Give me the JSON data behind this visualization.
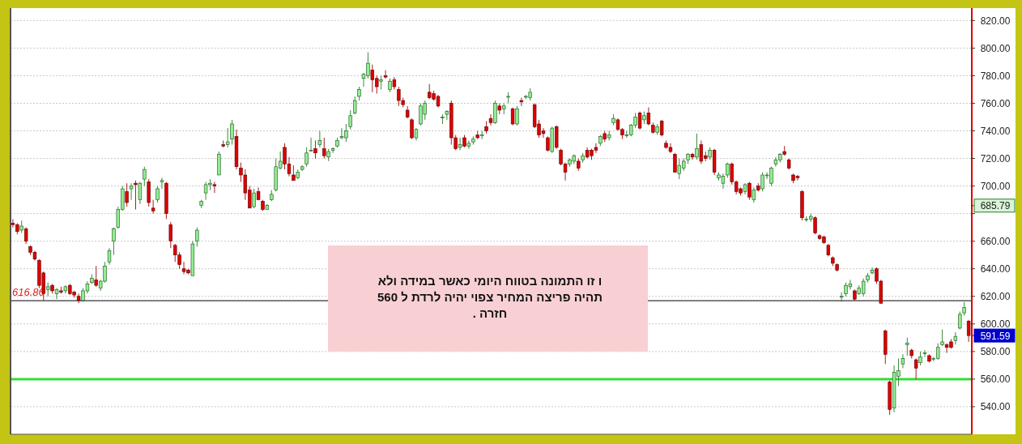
{
  "chart_data": {
    "type": "candlestick",
    "categories": [
      null,
      null,
      null,
      null,
      null,
      null,
      null,
      null,
      null,
      null,
      null,
      null,
      null,
      null,
      null,
      null,
      null,
      null,
      null,
      null,
      null,
      null,
      null,
      null,
      null,
      null,
      null,
      null,
      null,
      null,
      null,
      null,
      null,
      null,
      null,
      null,
      null,
      null,
      null,
      null,
      null,
      null,
      null,
      null,
      null,
      null,
      null,
      null,
      null,
      null,
      null,
      null,
      null,
      null,
      null,
      null,
      null,
      null,
      null,
      null,
      null,
      null,
      null,
      null,
      null,
      null,
      null,
      null,
      null,
      null,
      null,
      null,
      null,
      null,
      null,
      null,
      null,
      null,
      null,
      null,
      null,
      null,
      null,
      null,
      null,
      null,
      null,
      null,
      null,
      null,
      null,
      null,
      null,
      null,
      null,
      null,
      null,
      null,
      null,
      null,
      null,
      null,
      null,
      null,
      null,
      null,
      null,
      null,
      null,
      null,
      null,
      null,
      null,
      null,
      null,
      null,
      null,
      null,
      null,
      null,
      null,
      null,
      null,
      null,
      null,
      null,
      null,
      null,
      null,
      null,
      null,
      null,
      null,
      null,
      null,
      null,
      null,
      null,
      null,
      null,
      null,
      null,
      null,
      null,
      null,
      null,
      null,
      null,
      null,
      null,
      null,
      null,
      null,
      null,
      null,
      null,
      null,
      null,
      null,
      null,
      null,
      null,
      null,
      null,
      null,
      null,
      null,
      null,
      null,
      null,
      null,
      null,
      null,
      null,
      null,
      null,
      null,
      null,
      null,
      null,
      null,
      null,
      null,
      null,
      null,
      null,
      null,
      null,
      null,
      null,
      null,
      null,
      null,
      null,
      null,
      null,
      null,
      null,
      null,
      null,
      null,
      null,
      null,
      null,
      null,
      null,
      null,
      null,
      null,
      null,
      null,
      null,
      null,
      null,
      null,
      null,
      null,
      null,
      null
    ],
    "ohlc": [
      [
        673,
        676,
        670,
        672
      ],
      [
        672,
        673,
        665,
        667
      ],
      [
        668,
        675,
        666,
        671
      ],
      [
        669,
        670,
        658,
        660
      ],
      [
        656,
        657,
        650,
        652
      ],
      [
        652,
        653,
        646,
        647
      ],
      [
        646,
        647,
        626,
        628
      ],
      [
        637,
        638,
        617,
        622
      ],
      [
        625,
        630,
        620,
        627
      ],
      [
        628,
        629,
        622,
        624
      ],
      [
        622,
        626,
        618,
        625
      ],
      [
        624,
        627,
        622,
        623
      ],
      [
        624,
        628,
        622,
        627
      ],
      [
        628,
        629,
        621,
        622
      ],
      [
        623,
        624,
        619,
        621
      ],
      [
        620,
        622,
        615,
        617
      ],
      [
        617,
        626,
        616,
        624
      ],
      [
        624,
        631,
        622,
        629
      ],
      [
        630,
        636,
        629,
        633
      ],
      [
        632,
        642,
        627,
        628
      ],
      [
        626,
        632,
        624,
        631
      ],
      [
        631,
        645,
        630,
        642
      ],
      [
        645,
        655,
        643,
        653
      ],
      [
        660,
        670,
        650,
        669
      ],
      [
        670,
        685,
        669,
        683
      ],
      [
        683,
        700,
        682,
        698
      ],
      [
        696,
        702,
        685,
        688
      ],
      [
        698,
        702,
        690,
        700
      ],
      [
        702,
        704,
        683,
        701
      ],
      [
        690,
        703,
        687,
        702
      ],
      [
        705,
        714,
        700,
        712
      ],
      [
        703,
        705,
        685,
        688
      ],
      [
        684,
        690,
        680,
        682
      ],
      [
        690,
        700,
        688,
        698
      ],
      [
        703,
        706,
        698,
        704
      ],
      [
        702,
        703,
        676,
        680
      ],
      [
        672,
        674,
        655,
        660
      ],
      [
        657,
        658,
        645,
        650
      ],
      [
        650,
        652,
        640,
        643
      ],
      [
        640,
        645,
        636,
        638
      ],
      [
        639,
        640,
        636,
        637
      ],
      [
        635,
        660,
        635,
        658
      ],
      [
        660,
        670,
        656,
        668
      ],
      [
        686,
        690,
        684,
        689
      ],
      [
        695,
        703,
        690,
        701
      ],
      [
        701,
        705,
        697,
        702
      ],
      [
        701,
        703,
        695,
        700
      ],
      [
        708,
        725,
        708,
        723
      ],
      [
        730,
        733,
        728,
        729
      ],
      [
        730,
        742,
        728,
        732
      ],
      [
        734,
        748,
        730,
        745
      ],
      [
        736,
        741,
        712,
        714
      ],
      [
        713,
        717,
        703,
        708
      ],
      [
        708,
        712,
        690,
        695
      ],
      [
        697,
        700,
        684,
        684
      ],
      [
        685,
        698,
        684,
        695
      ],
      [
        696,
        699,
        690,
        690
      ],
      [
        689,
        690,
        682,
        683
      ],
      [
        683,
        687,
        683,
        686
      ],
      [
        690,
        697,
        689,
        694
      ],
      [
        697,
        720,
        696,
        714
      ],
      [
        713,
        725,
        712,
        718
      ],
      [
        728,
        731,
        712,
        716
      ],
      [
        716,
        721,
        707,
        709
      ],
      [
        708,
        715,
        704,
        704
      ],
      [
        706,
        712,
        705,
        710
      ],
      [
        712,
        715,
        711,
        714
      ],
      [
        716,
        728,
        714,
        724
      ],
      [
        726,
        735,
        725,
        726
      ],
      [
        727,
        733,
        720,
        724
      ],
      [
        730,
        740,
        728,
        733
      ],
      [
        727,
        735,
        720,
        722
      ],
      [
        721,
        727,
        718,
        725
      ],
      [
        726,
        728,
        724,
        727
      ],
      [
        729,
        735,
        728,
        733
      ],
      [
        735,
        742,
        734,
        736
      ],
      [
        735,
        745,
        732,
        740
      ],
      [
        743,
        755,
        741,
        751
      ],
      [
        753,
        765,
        752,
        762
      ],
      [
        765,
        772,
        762,
        770
      ],
      [
        778,
        782,
        772,
        781
      ],
      [
        780,
        797,
        778,
        789
      ],
      [
        784,
        788,
        768,
        777
      ],
      [
        778,
        780,
        767,
        772
      ],
      [
        776,
        780,
        770,
        777
      ],
      [
        780,
        784,
        778,
        779
      ],
      [
        770,
        778,
        768,
        776
      ],
      [
        777,
        779,
        770,
        772
      ],
      [
        770,
        772,
        758,
        762
      ],
      [
        762,
        764,
        757,
        759
      ],
      [
        755,
        758,
        749,
        750
      ],
      [
        748,
        749,
        734,
        735
      ],
      [
        735,
        742,
        733,
        741
      ],
      [
        745,
        760,
        744,
        758
      ],
      [
        752,
        762,
        748,
        760
      ],
      [
        768,
        774,
        763,
        764
      ],
      [
        767,
        769,
        762,
        763
      ],
      [
        765,
        766,
        757,
        758
      ],
      [
        750,
        752,
        745,
        750
      ],
      [
        752,
        755,
        748,
        754
      ],
      [
        760,
        762,
        730,
        735
      ],
      [
        735,
        737,
        726,
        727
      ],
      [
        728,
        735,
        726,
        730
      ],
      [
        735,
        737,
        728,
        729
      ],
      [
        729,
        733,
        727,
        731
      ],
      [
        732,
        736,
        730,
        734
      ],
      [
        737,
        740,
        734,
        735
      ],
      [
        737,
        740,
        734,
        737
      ],
      [
        743,
        747,
        738,
        740
      ],
      [
        749,
        752,
        744,
        746
      ],
      [
        746,
        762,
        745,
        760
      ],
      [
        758,
        760,
        752,
        755
      ],
      [
        756,
        760,
        752,
        758
      ],
      [
        765,
        768,
        760,
        765
      ],
      [
        756,
        757,
        744,
        745
      ],
      [
        745,
        758,
        744,
        756
      ],
      [
        762,
        764,
        758,
        761
      ],
      [
        765,
        766,
        763,
        765
      ],
      [
        764,
        771,
        762,
        768
      ],
      [
        759,
        760,
        742,
        743
      ],
      [
        745,
        748,
        735,
        737
      ],
      [
        740,
        742,
        735,
        738
      ],
      [
        735,
        736,
        725,
        726
      ],
      [
        725,
        743,
        724,
        742
      ],
      [
        743,
        744,
        727,
        728
      ],
      [
        726,
        727,
        715,
        716
      ],
      [
        716,
        717,
        704,
        710
      ],
      [
        716,
        720,
        714,
        719
      ],
      [
        718,
        723,
        716,
        722
      ],
      [
        718,
        720,
        711,
        713
      ],
      [
        719,
        724,
        717,
        722
      ],
      [
        726,
        728,
        720,
        721
      ],
      [
        726,
        727,
        719,
        722
      ],
      [
        728,
        731,
        724,
        726
      ],
      [
        731,
        737,
        729,
        736
      ],
      [
        738,
        740,
        732,
        734
      ],
      [
        735,
        740,
        733,
        737
      ],
      [
        746,
        752,
        744,
        749
      ],
      [
        748,
        749,
        740,
        741
      ],
      [
        741,
        742,
        734,
        737
      ],
      [
        737,
        740,
        735,
        737
      ],
      [
        737,
        745,
        736,
        744
      ],
      [
        744,
        753,
        742,
        750
      ],
      [
        753,
        754,
        741,
        742
      ],
      [
        748,
        754,
        745,
        751
      ],
      [
        753,
        757,
        744,
        745
      ],
      [
        744,
        746,
        738,
        739
      ],
      [
        739,
        745,
        737,
        743
      ],
      [
        747,
        748,
        736,
        737
      ],
      [
        731,
        733,
        727,
        728
      ],
      [
        728,
        731,
        724,
        725
      ],
      [
        723,
        724,
        710,
        710
      ],
      [
        709,
        720,
        705,
        715
      ],
      [
        713,
        720,
        711,
        718
      ],
      [
        719,
        724,
        716,
        723
      ],
      [
        723,
        724,
        719,
        721
      ],
      [
        721,
        738,
        719,
        727
      ],
      [
        730,
        733,
        716,
        718
      ],
      [
        722,
        725,
        718,
        720
      ],
      [
        721,
        728,
        719,
        726
      ],
      [
        726,
        727,
        708,
        710
      ],
      [
        706,
        710,
        704,
        708
      ],
      [
        702,
        709,
        698,
        707
      ],
      [
        708,
        717,
        706,
        716
      ],
      [
        716,
        717,
        701,
        703
      ],
      [
        703,
        704,
        694,
        696
      ],
      [
        698,
        699,
        693,
        695
      ],
      [
        696,
        702,
        694,
        701
      ],
      [
        702,
        703,
        690,
        692
      ],
      [
        690,
        699,
        688,
        697
      ],
      [
        700,
        702,
        696,
        697
      ],
      [
        698,
        710,
        696,
        708
      ],
      [
        708,
        710,
        705,
        708
      ],
      [
        702,
        714,
        700,
        713
      ],
      [
        716,
        721,
        714,
        719
      ],
      [
        719,
        724,
        717,
        723
      ],
      [
        725,
        729,
        722,
        723
      ],
      [
        719,
        720,
        712,
        713
      ],
      [
        708,
        709,
        702,
        704
      ],
      [
        707,
        708,
        704,
        706
      ],
      [
        696,
        697,
        675,
        677
      ],
      [
        676,
        678,
        674,
        676
      ],
      [
        676,
        680,
        674,
        678
      ],
      [
        677,
        678,
        665,
        666
      ],
      [
        664,
        665,
        661,
        662
      ],
      [
        663,
        664,
        658,
        659
      ],
      [
        657,
        658,
        649,
        650
      ],
      [
        648,
        649,
        642,
        644
      ],
      [
        643,
        644,
        638,
        639
      ],
      [
        620,
        623,
        616,
        620
      ],
      [
        622,
        630,
        620,
        628
      ],
      [
        627,
        632,
        625,
        629
      ],
      [
        624,
        625,
        617,
        618
      ],
      [
        622,
        628,
        621,
        626
      ],
      [
        622,
        633,
        620,
        631
      ],
      [
        632,
        637,
        630,
        635
      ],
      [
        637,
        641,
        636,
        639
      ],
      [
        640,
        641,
        629,
        631
      ],
      [
        631,
        632,
        615,
        615
      ],
      [
        595,
        596,
        571,
        578
      ],
      [
        558,
        559,
        534,
        538
      ],
      [
        539,
        570,
        536,
        565
      ],
      [
        562,
        575,
        555,
        566
      ],
      [
        571,
        578,
        568,
        575
      ],
      [
        585,
        590,
        577,
        586
      ],
      [
        581,
        582,
        575,
        577
      ],
      [
        574,
        575,
        560,
        568
      ],
      [
        572,
        580,
        570,
        576
      ],
      [
        579,
        581,
        576,
        579
      ],
      [
        577,
        578,
        572,
        573
      ],
      [
        575,
        576,
        573,
        575
      ],
      [
        575,
        586,
        574,
        583
      ],
      [
        585,
        596,
        584,
        587
      ],
      [
        585,
        586,
        579,
        583
      ],
      [
        587,
        589,
        582,
        583
      ],
      [
        588,
        594,
        585,
        591
      ],
      [
        597,
        609,
        596,
        607
      ],
      [
        608,
        616,
        606,
        612
      ],
      [
        602,
        603,
        587,
        591.59
      ]
    ],
    "ylim": [
      520,
      829
    ],
    "yticks": [
      {
        "value": 540,
        "label": "540.00"
      },
      {
        "value": 560,
        "label": "560.00"
      },
      {
        "value": 580,
        "label": "580.00"
      },
      {
        "value": 600,
        "label": "600.00"
      },
      {
        "value": 620,
        "label": "620.00"
      },
      {
        "value": 640,
        "label": "640.00"
      },
      {
        "value": 591.59,
        "label": "591.59"
      },
      {
        "value": 660,
        "label": "660.00"
      },
      {
        "value": 680,
        "label": null
      },
      {
        "value": 685.79,
        "label": "685.79"
      },
      {
        "value": 700,
        "label": "700.00"
      },
      {
        "value": 720,
        "label": "720.00"
      },
      {
        "value": 740,
        "label": "740.00"
      },
      {
        "value": 760,
        "label": "760.00"
      },
      {
        "value": 780,
        "label": "780.00"
      },
      {
        "value": 800,
        "label": "800.00"
      },
      {
        "value": 820,
        "label": "820.00"
      }
    ],
    "grid": "y",
    "ref_lines": [
      {
        "axis": "y",
        "value": 616.86,
        "label": "616.86",
        "color": "#000000"
      },
      {
        "axis": "y",
        "value": 560,
        "color": "#33dd33"
      }
    ],
    "annotations": [
      "ו זו  התמונה בטווח היומי  כאשר    במידה  ולא\nתהיה  פריצה  המחיר  צפוי יהיה לרדת ל 560\nחזרה    ."
    ]
  }
}
